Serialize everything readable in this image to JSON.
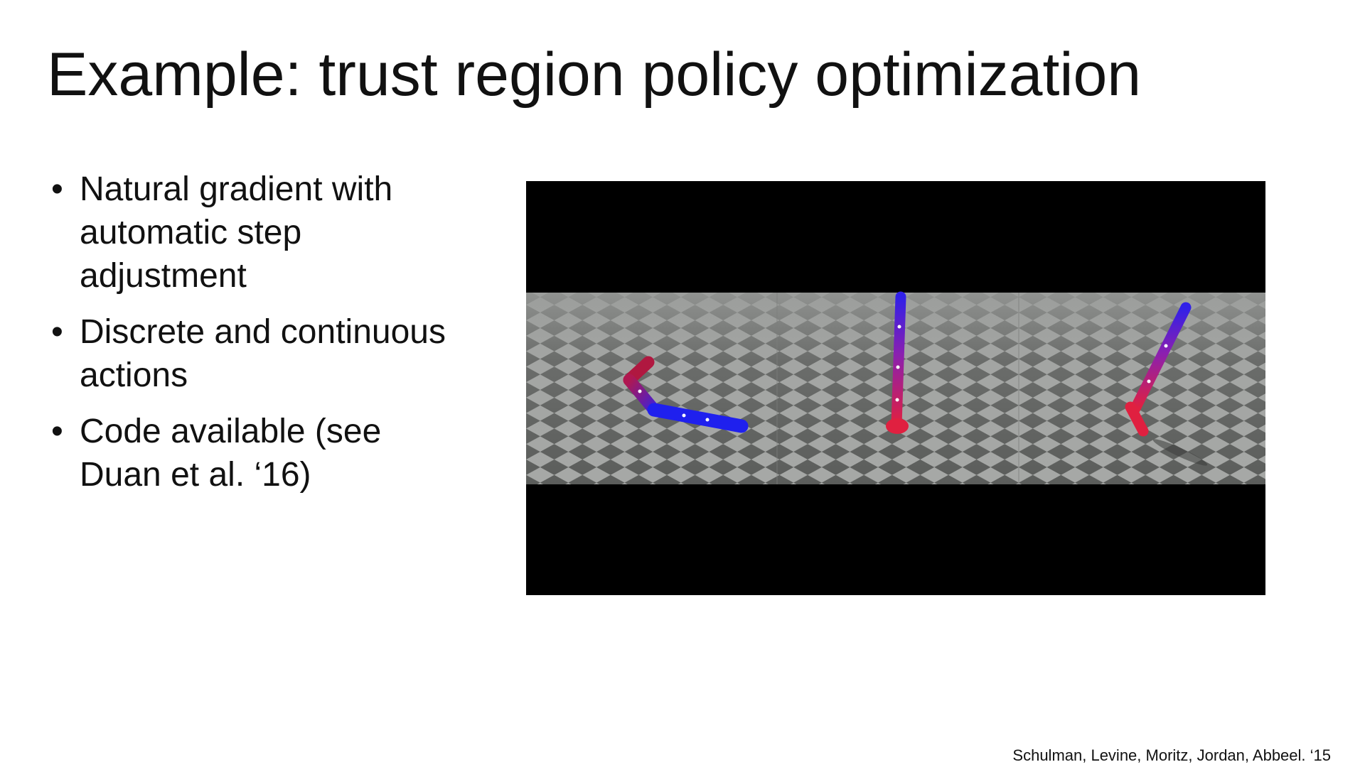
{
  "slide": {
    "title": "Example: trust region policy optimization",
    "bullets": [
      "Natural gradient with automatic step adjustment",
      "Discrete and continuous actions",
      "Code available (see Duan et al. ‘16)"
    ],
    "citation": "Schulman, Levine, Moritz, Jordan, Abbeel. ‘15"
  },
  "colors": {
    "background": "#ffffff",
    "text": "#111111",
    "video_background": "#000000",
    "floor_light": "#a6a8a6",
    "floor_dark": "#5b5d5b",
    "robot_blue": "#2020f0",
    "robot_red": "#e02040"
  },
  "icons": {
    "bullet": "•"
  }
}
